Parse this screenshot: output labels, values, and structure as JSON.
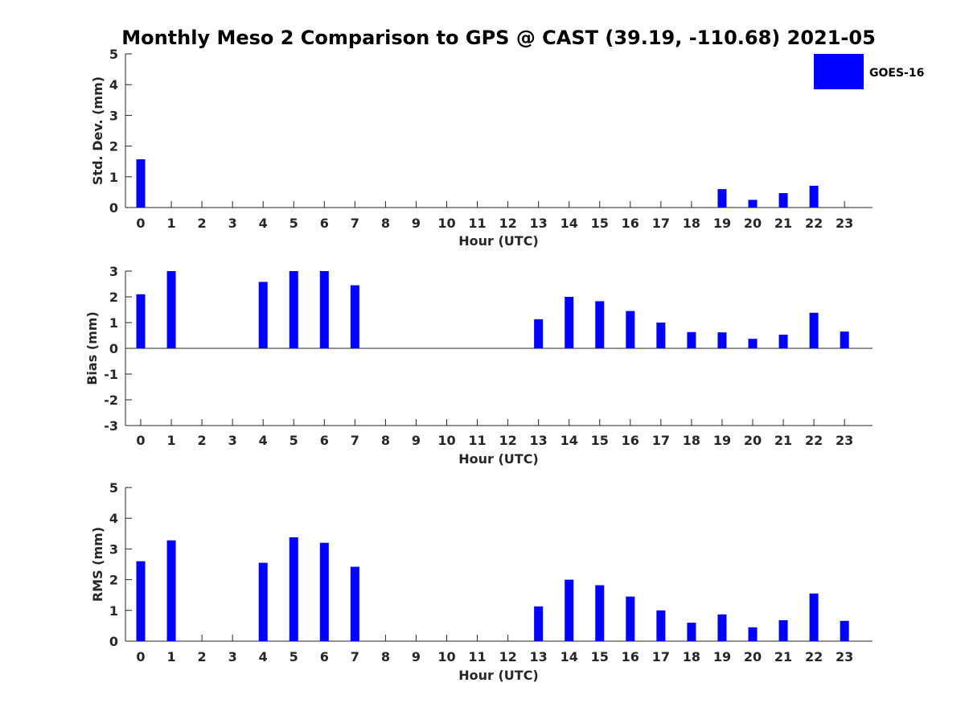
{
  "title": "Monthly Meso 2 Comparison to GPS @ CAST (39.19, -110.68) 2021-05",
  "legend": {
    "label": "GOES-16",
    "color": "#0000ff",
    "position": "top-right"
  },
  "chart_data": [
    {
      "type": "bar",
      "title": "",
      "xlabel": "Hour (UTC)",
      "ylabel": "Std. Dev. (mm)",
      "ylim": [
        0,
        5
      ],
      "yticks": [
        "0",
        "1",
        "2",
        "3",
        "4",
        "5"
      ],
      "categories": [
        "0",
        "1",
        "2",
        "3",
        "4",
        "5",
        "6",
        "7",
        "8",
        "9",
        "10",
        "11",
        "12",
        "13",
        "14",
        "15",
        "16",
        "17",
        "18",
        "19",
        "20",
        "21",
        "22",
        "23"
      ],
      "series": [
        {
          "name": "GOES-16",
          "color": "#0000ff",
          "values": [
            1.57,
            null,
            null,
            null,
            null,
            null,
            null,
            null,
            null,
            null,
            null,
            null,
            null,
            null,
            null,
            null,
            null,
            null,
            null,
            0.6,
            0.25,
            0.47,
            0.71,
            null
          ]
        }
      ]
    },
    {
      "type": "bar",
      "title": "",
      "xlabel": "Hour (UTC)",
      "ylabel": "Bias (mm)",
      "ylim": [
        -3,
        3
      ],
      "yticks": [
        "-3",
        "-2",
        "-1",
        "0",
        "1",
        "2",
        "3"
      ],
      "categories": [
        "0",
        "1",
        "2",
        "3",
        "4",
        "5",
        "6",
        "7",
        "8",
        "9",
        "10",
        "11",
        "12",
        "13",
        "14",
        "15",
        "16",
        "17",
        "18",
        "19",
        "20",
        "21",
        "22",
        "23"
      ],
      "series": [
        {
          "name": "GOES-16",
          "color": "#0000ff",
          "values": [
            2.1,
            3.0,
            null,
            null,
            2.58,
            3.0,
            3.0,
            2.45,
            null,
            null,
            null,
            null,
            null,
            1.13,
            2.0,
            1.83,
            1.45,
            1.0,
            0.63,
            0.62,
            0.37,
            0.53,
            1.38,
            0.65
          ]
        }
      ]
    },
    {
      "type": "bar",
      "title": "",
      "xlabel": "Hour (UTC)",
      "ylabel": "RMS (mm)",
      "ylim": [
        0,
        5
      ],
      "yticks": [
        "0",
        "1",
        "2",
        "3",
        "4",
        "5"
      ],
      "categories": [
        "0",
        "1",
        "2",
        "3",
        "4",
        "5",
        "6",
        "7",
        "8",
        "9",
        "10",
        "11",
        "12",
        "13",
        "14",
        "15",
        "16",
        "17",
        "18",
        "19",
        "20",
        "21",
        "22",
        "23"
      ],
      "series": [
        {
          "name": "GOES-16",
          "color": "#0000ff",
          "values": [
            2.6,
            3.28,
            null,
            null,
            2.55,
            3.38,
            3.2,
            2.42,
            null,
            null,
            null,
            null,
            null,
            1.13,
            2.0,
            1.82,
            1.45,
            1.0,
            0.6,
            0.87,
            0.45,
            0.68,
            1.55,
            0.66
          ]
        }
      ]
    }
  ]
}
